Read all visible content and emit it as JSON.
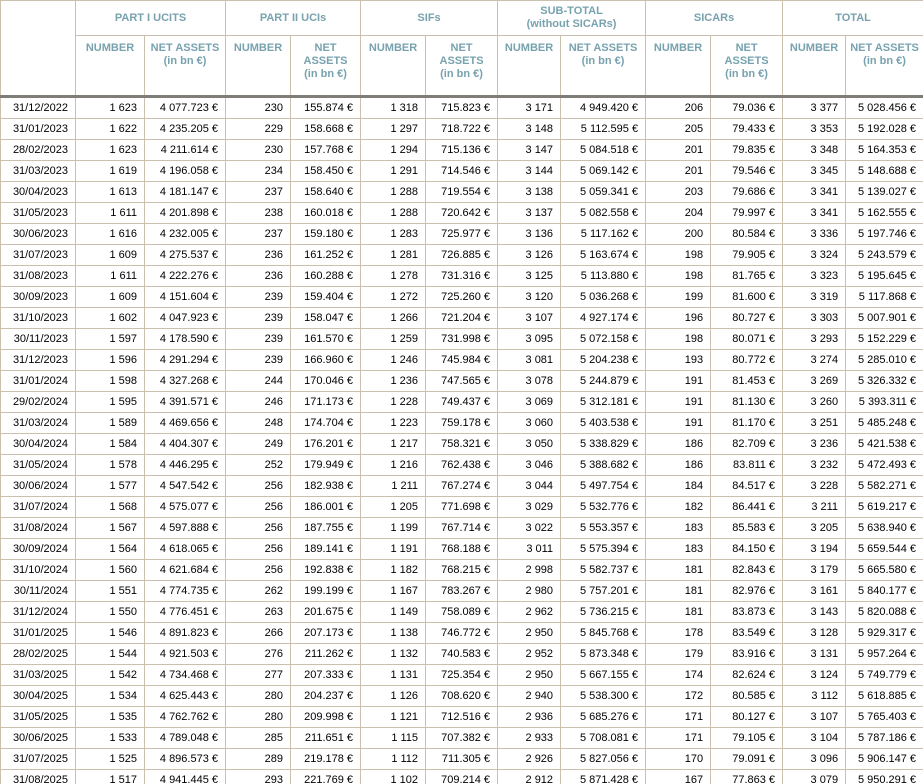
{
  "table_title": "investment-fund-statistics",
  "colors": {
    "header_text": "#77a2ae",
    "border": "#c9c0ae",
    "header_separator": "#7f7d75",
    "body_text": "#000000",
    "background": "#ffffff"
  },
  "header": {
    "groups": [
      {
        "line1": "PART I UCITS",
        "line2": ""
      },
      {
        "line1": "PART II UCIs",
        "line2": ""
      },
      {
        "line1": "SIFs",
        "line2": ""
      },
      {
        "line1": "SUB-TOTAL",
        "line2": "(without SICARs)"
      },
      {
        "line1": "SICARs",
        "line2": ""
      },
      {
        "line1": "TOTAL",
        "line2": ""
      }
    ],
    "number_label": "NUMBER",
    "net_assets_label": "NET ASSETS",
    "net_assets_unit": "(in bn €)"
  },
  "columns": [
    {
      "key": "date",
      "name": "cell-date"
    },
    {
      "key": "part1_ucits_number",
      "name": "cell-part1-ucits-number"
    },
    {
      "key": "part1_ucits_net_assets",
      "name": "cell-part1-ucits-net-assets"
    },
    {
      "key": "part2_ucis_number",
      "name": "cell-part2-ucis-number"
    },
    {
      "key": "part2_ucis_net_assets",
      "name": "cell-part2-ucis-net-assets"
    },
    {
      "key": "sifs_number",
      "name": "cell-sifs-number"
    },
    {
      "key": "sifs_net_assets",
      "name": "cell-sifs-net-assets"
    },
    {
      "key": "subtotal_number",
      "name": "cell-subtotal-number"
    },
    {
      "key": "subtotal_net_assets",
      "name": "cell-subtotal-net-assets"
    },
    {
      "key": "sicars_number",
      "name": "cell-sicars-number"
    },
    {
      "key": "sicars_net_assets",
      "name": "cell-sicars-net-assets"
    },
    {
      "key": "total_number",
      "name": "cell-total-number"
    },
    {
      "key": "total_net_assets",
      "name": "cell-total-net-assets"
    }
  ],
  "rows": [
    [
      "31/12/2022",
      "1 623",
      "4 077.723 €",
      "230",
      "155.874 €",
      "1 318",
      "715.823 €",
      "3 171",
      "4 949.420 €",
      "206",
      "79.036 €",
      "3 377",
      "5 028.456 €"
    ],
    [
      "31/01/2023",
      "1 622",
      "4 235.205 €",
      "229",
      "158.668 €",
      "1 297",
      "718.722 €",
      "3 148",
      "5 112.595 €",
      "205",
      "79.433 €",
      "3 353",
      "5 192.028 €"
    ],
    [
      "28/02/2023",
      "1 623",
      "4 211.614 €",
      "230",
      "157.768 €",
      "1 294",
      "715.136 €",
      "3 147",
      "5 084.518 €",
      "201",
      "79.835 €",
      "3 348",
      "5 164.353 €"
    ],
    [
      "31/03/2023",
      "1 619",
      "4 196.058 €",
      "234",
      "158.450 €",
      "1 291",
      "714.546 €",
      "3 144",
      "5 069.142 €",
      "201",
      "79.546 €",
      "3 345",
      "5 148.688 €"
    ],
    [
      "30/04/2023",
      "1 613",
      "4 181.147 €",
      "237",
      "158.640 €",
      "1 288",
      "719.554 €",
      "3 138",
      "5 059.341 €",
      "203",
      "79.686 €",
      "3 341",
      "5 139.027 €"
    ],
    [
      "31/05/2023",
      "1 611",
      "4 201.898 €",
      "238",
      "160.018 €",
      "1 288",
      "720.642 €",
      "3 137",
      "5 082.558 €",
      "204",
      "79.997 €",
      "3 341",
      "5 162.555 €"
    ],
    [
      "30/06/2023",
      "1 616",
      "4 232.005 €",
      "237",
      "159.180 €",
      "1 283",
      "725.977 €",
      "3 136",
      "5 117.162 €",
      "200",
      "80.584 €",
      "3 336",
      "5 197.746 €"
    ],
    [
      "31/07/2023",
      "1 609",
      "4 275.537 €",
      "236",
      "161.252 €",
      "1 281",
      "726.885 €",
      "3 126",
      "5 163.674 €",
      "198",
      "79.905 €",
      "3 324",
      "5 243.579 €"
    ],
    [
      "31/08/2023",
      "1 611",
      "4 222.276 €",
      "236",
      "160.288 €",
      "1 278",
      "731.316 €",
      "3 125",
      "5 113.880 €",
      "198",
      "81.765 €",
      "3 323",
      "5 195.645 €"
    ],
    [
      "30/09/2023",
      "1 609",
      "4 151.604 €",
      "239",
      "159.404 €",
      "1 272",
      "725.260 €",
      "3 120",
      "5 036.268 €",
      "199",
      "81.600 €",
      "3 319",
      "5 117.868 €"
    ],
    [
      "31/10/2023",
      "1 602",
      "4 047.923 €",
      "239",
      "158.047 €",
      "1 266",
      "721.204 €",
      "3 107",
      "4 927.174 €",
      "196",
      "80.727 €",
      "3 303",
      "5 007.901 €"
    ],
    [
      "30/11/2023",
      "1 597",
      "4 178.590 €",
      "239",
      "161.570 €",
      "1 259",
      "731.998 €",
      "3 095",
      "5 072.158 €",
      "198",
      "80.071 €",
      "3 293",
      "5 152.229 €"
    ],
    [
      "31/12/2023",
      "1 596",
      "4 291.294 €",
      "239",
      "166.960 €",
      "1 246",
      "745.984 €",
      "3 081",
      "5 204.238 €",
      "193",
      "80.772 €",
      "3 274",
      "5 285.010 €"
    ],
    [
      "31/01/2024",
      "1 598",
      "4 327.268 €",
      "244",
      "170.046 €",
      "1 236",
      "747.565 €",
      "3 078",
      "5 244.879 €",
      "191",
      "81.453 €",
      "3 269",
      "5 326.332 €"
    ],
    [
      "29/02/2024",
      "1 595",
      "4 391.571 €",
      "246",
      "171.173 €",
      "1 228",
      "749.437 €",
      "3 069",
      "5 312.181 €",
      "191",
      "81.130 €",
      "3 260",
      "5 393.311 €"
    ],
    [
      "31/03/2024",
      "1 589",
      "4 469.656 €",
      "248",
      "174.704 €",
      "1 223",
      "759.178 €",
      "3 060",
      "5 403.538 €",
      "191",
      "81.170 €",
      "3 251",
      "5 485.248 €"
    ],
    [
      "30/04/2024",
      "1 584",
      "4 404.307 €",
      "249",
      "176.201 €",
      "1 217",
      "758.321 €",
      "3 050",
      "5 338.829 €",
      "186",
      "82.709 €",
      "3 236",
      "5 421.538 €"
    ],
    [
      "31/05/2024",
      "1 578",
      "4 446.295 €",
      "252",
      "179.949 €",
      "1 216",
      "762.438 €",
      "3 046",
      "5 388.682 €",
      "186",
      "83.811 €",
      "3 232",
      "5 472.493 €"
    ],
    [
      "30/06/2024",
      "1 577",
      "4 547.542 €",
      "256",
      "182.938 €",
      "1 211",
      "767.274 €",
      "3 044",
      "5 497.754 €",
      "184",
      "84.517 €",
      "3 228",
      "5 582.271 €"
    ],
    [
      "31/07/2024",
      "1 568",
      "4 575.077 €",
      "256",
      "186.001 €",
      "1 205",
      "771.698 €",
      "3 029",
      "5 532.776 €",
      "182",
      "86.441 €",
      "3 211",
      "5 619.217 €"
    ],
    [
      "31/08/2024",
      "1 567",
      "4 597.888 €",
      "256",
      "187.755 €",
      "1 199",
      "767.714 €",
      "3 022",
      "5 553.357 €",
      "183",
      "85.583 €",
      "3 205",
      "5 638.940 €"
    ],
    [
      "30/09/2024",
      "1 564",
      "4 618.065 €",
      "256",
      "189.141 €",
      "1 191",
      "768.188 €",
      "3 011",
      "5 575.394 €",
      "183",
      "84.150 €",
      "3 194",
      "5 659.544 €"
    ],
    [
      "31/10/2024",
      "1 560",
      "4 621.684 €",
      "256",
      "192.838 €",
      "1 182",
      "768.215 €",
      "2 998",
      "5 582.737 €",
      "181",
      "82.843 €",
      "3 179",
      "5 665.580 €"
    ],
    [
      "30/11/2024",
      "1 551",
      "4 774.735 €",
      "262",
      "199.199 €",
      "1 167",
      "783.267 €",
      "2 980",
      "5 757.201 €",
      "181",
      "82.976 €",
      "3 161",
      "5 840.177 €"
    ],
    [
      "31/12/2024",
      "1 550",
      "4 776.451 €",
      "263",
      "201.675 €",
      "1 149",
      "758.089 €",
      "2 962",
      "5 736.215 €",
      "181",
      "83.873 €",
      "3 143",
      "5 820.088 €"
    ],
    [
      "31/01/2025",
      "1 546",
      "4 891.823 €",
      "266",
      "207.173 €",
      "1 138",
      "746.772 €",
      "2 950",
      "5 845.768 €",
      "178",
      "83.549 €",
      "3 128",
      "5 929.317 €"
    ],
    [
      "28/02/2025",
      "1 544",
      "4 921.503 €",
      "276",
      "211.262 €",
      "1 132",
      "740.583 €",
      "2 952",
      "5 873.348 €",
      "179",
      "83.916 €",
      "3 131",
      "5 957.264 €"
    ],
    [
      "31/03/2025",
      "1 542",
      "4 734.468 €",
      "277",
      "207.333 €",
      "1 131",
      "725.354 €",
      "2 950",
      "5 667.155 €",
      "174",
      "82.624 €",
      "3 124",
      "5 749.779 €"
    ],
    [
      "30/04/2025",
      "1 534",
      "4 625.443 €",
      "280",
      "204.237 €",
      "1 126",
      "708.620 €",
      "2 940",
      "5 538.300 €",
      "172",
      "80.585 €",
      "3 112",
      "5 618.885 €"
    ],
    [
      "31/05/2025",
      "1 535",
      "4 762.762 €",
      "280",
      "209.998 €",
      "1 121",
      "712.516 €",
      "2 936",
      "5 685.276 €",
      "171",
      "80.127 €",
      "3 107",
      "5 765.403 €"
    ],
    [
      "30/06/2025",
      "1 533",
      "4 789.048 €",
      "285",
      "211.651 €",
      "1 115",
      "707.382 €",
      "2 933",
      "5 708.081 €",
      "171",
      "79.105 €",
      "3 104",
      "5 787.186 €"
    ],
    [
      "31/07/2025",
      "1 525",
      "4 896.573 €",
      "289",
      "219.178 €",
      "1 112",
      "711.305 €",
      "2 926",
      "5 827.056 €",
      "170",
      "79.091 €",
      "3 096",
      "5 906.147 €"
    ],
    [
      "31/08/2025",
      "1 517",
      "4 941.445 €",
      "293",
      "221.769 €",
      "1 102",
      "709.214 €",
      "2 912",
      "5 871.428 €",
      "167",
      "77.863 €",
      "3 079",
      "5 950.291 €"
    ]
  ]
}
